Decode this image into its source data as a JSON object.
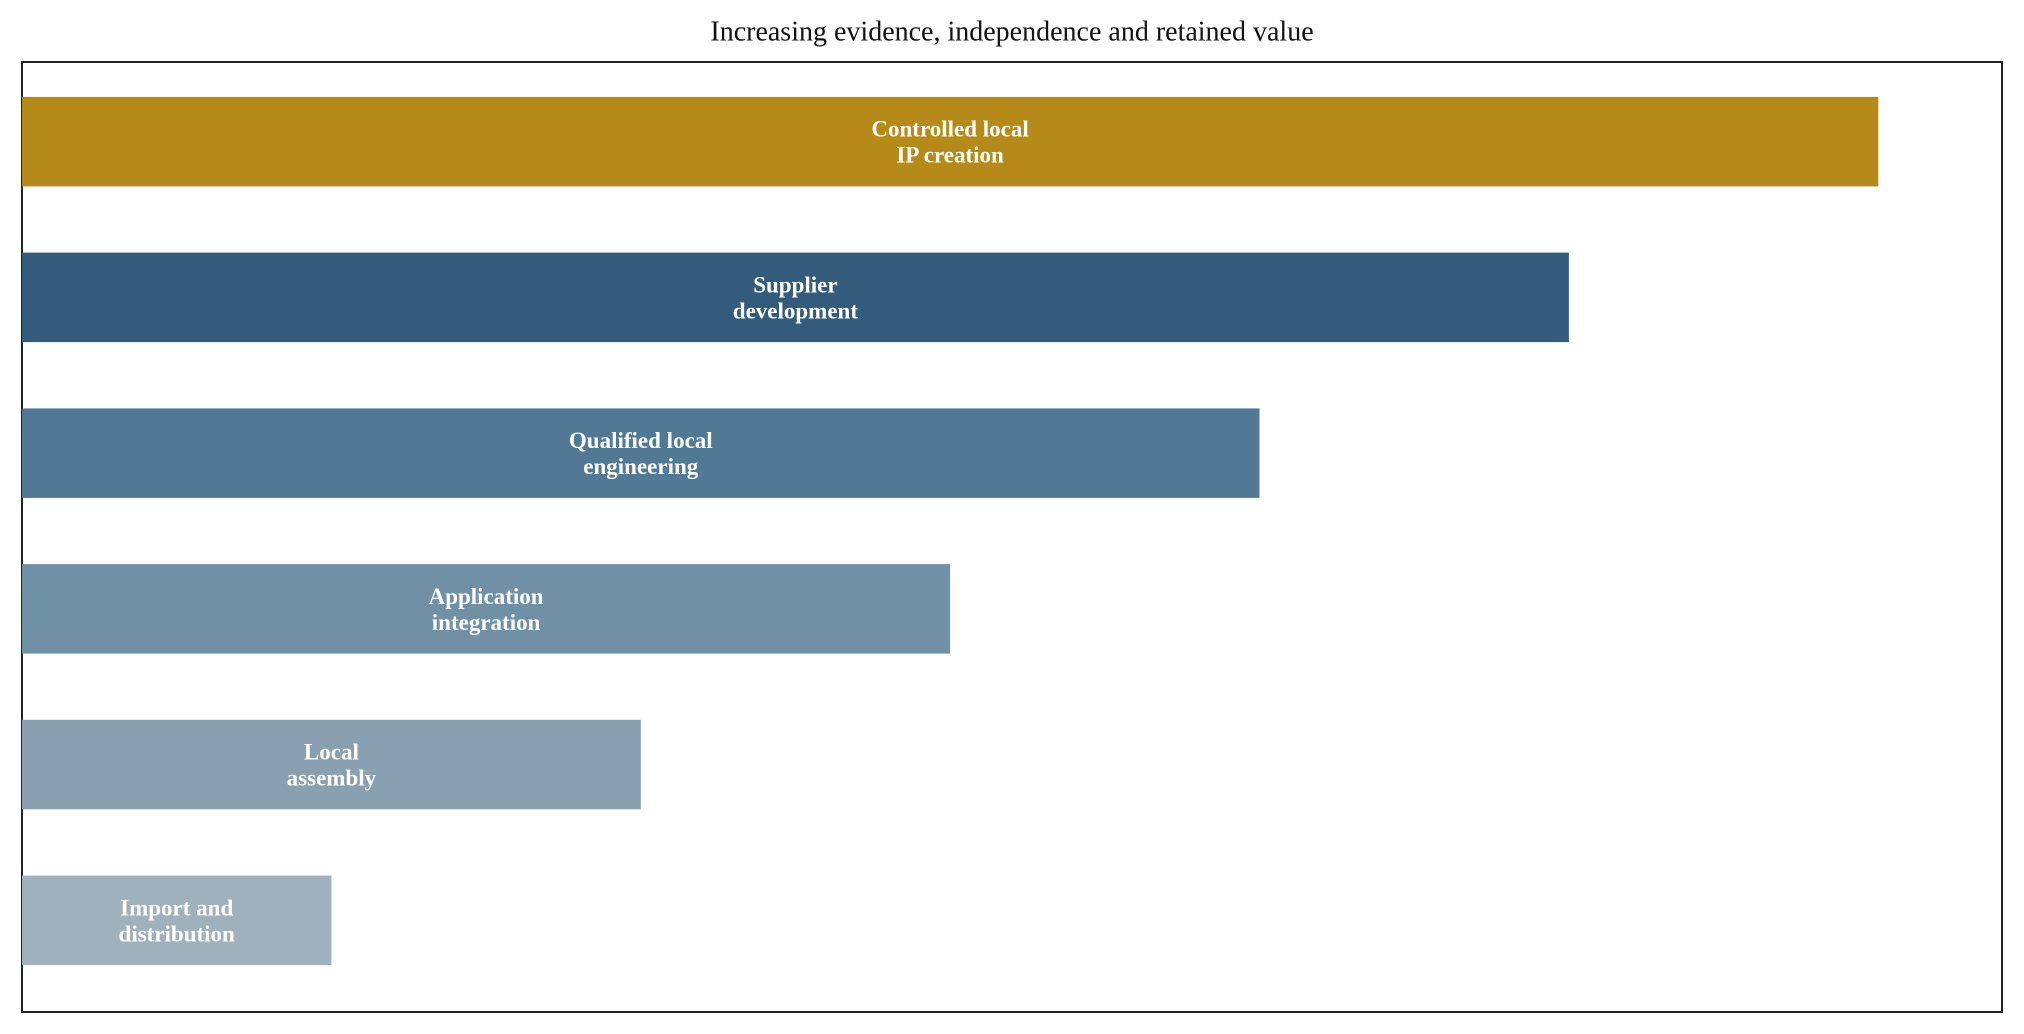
{
  "chart_data": {
    "type": "bar",
    "orientation": "horizontal",
    "title": "Increasing evidence, independence and retained value",
    "xlabel": "",
    "ylabel": "",
    "axes_visible": false,
    "grid": false,
    "xlim": [
      0,
      6.4
    ],
    "categories": [
      "Import and\ndistribution",
      "Local\nassembly",
      "Application\nintegration",
      "Qualified local\nengineering",
      "Supplier\ndevelopment",
      "Controlled local\nIP creation"
    ],
    "values": [
      1,
      2,
      3,
      4,
      5,
      6
    ],
    "colors": [
      "#9fb1bd",
      "#89a0b0",
      "#6f90a5",
      "#517895",
      "#335b7b",
      "#b58a18"
    ],
    "label_color": "#ffffff"
  }
}
